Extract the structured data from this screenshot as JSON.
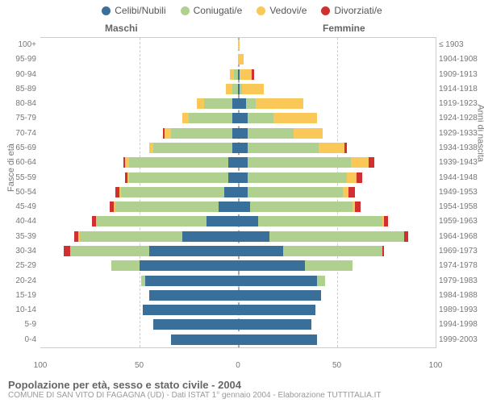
{
  "legend": [
    {
      "label": "Celibi/Nubili",
      "color": "#3a6f9a"
    },
    {
      "label": "Coniugati/e",
      "color": "#b0d090"
    },
    {
      "label": "Vedovi/e",
      "color": "#fac858"
    },
    {
      "label": "Divorziati/e",
      "color": "#d03030"
    }
  ],
  "headers": {
    "male": "Maschi",
    "female": "Femmine"
  },
  "axis": {
    "left_title": "Fasce di età",
    "right_title": "Anni di nascita",
    "x_ticks": [
      100,
      50,
      0,
      50,
      100
    ],
    "x_max": 100,
    "grid_positions": [
      -100,
      -50,
      0,
      50,
      100
    ]
  },
  "colors": {
    "celibi": "#3a6f9a",
    "coniugati": "#b0d090",
    "vedovi": "#fac858",
    "divorziati": "#d03030",
    "grid": "#cccccc",
    "center": "#aaaaaa",
    "text": "#777777"
  },
  "rows": [
    {
      "age": "100+",
      "birth": "≤ 1903",
      "m": {
        "c": 0,
        "co": 0,
        "v": 0,
        "d": 0
      },
      "f": {
        "c": 0,
        "co": 0,
        "v": 1,
        "d": 0
      }
    },
    {
      "age": "95-99",
      "birth": "1904-1908",
      "m": {
        "c": 0,
        "co": 0,
        "v": 0,
        "d": 0
      },
      "f": {
        "c": 0,
        "co": 0,
        "v": 3,
        "d": 0
      }
    },
    {
      "age": "90-94",
      "birth": "1909-1913",
      "m": {
        "c": 0,
        "co": 2,
        "v": 2,
        "d": 0
      },
      "f": {
        "c": 1,
        "co": 0,
        "v": 6,
        "d": 1
      }
    },
    {
      "age": "85-89",
      "birth": "1914-1918",
      "m": {
        "c": 0,
        "co": 3,
        "v": 3,
        "d": 0
      },
      "f": {
        "c": 1,
        "co": 1,
        "v": 11,
        "d": 0
      }
    },
    {
      "age": "80-84",
      "birth": "1919-1923",
      "m": {
        "c": 3,
        "co": 14,
        "v": 4,
        "d": 0
      },
      "f": {
        "c": 4,
        "co": 5,
        "v": 24,
        "d": 0
      }
    },
    {
      "age": "75-79",
      "birth": "1924-1928",
      "m": {
        "c": 3,
        "co": 22,
        "v": 3,
        "d": 0
      },
      "f": {
        "c": 5,
        "co": 13,
        "v": 22,
        "d": 0
      }
    },
    {
      "age": "70-74",
      "birth": "1929-1933",
      "m": {
        "c": 3,
        "co": 31,
        "v": 3,
        "d": 1
      },
      "f": {
        "c": 5,
        "co": 23,
        "v": 15,
        "d": 0
      }
    },
    {
      "age": "65-69",
      "birth": "1934-1938",
      "m": {
        "c": 3,
        "co": 40,
        "v": 2,
        "d": 0
      },
      "f": {
        "c": 5,
        "co": 36,
        "v": 13,
        "d": 1
      }
    },
    {
      "age": "60-64",
      "birth": "1939-1943",
      "m": {
        "c": 5,
        "co": 50,
        "v": 2,
        "d": 1
      },
      "f": {
        "c": 5,
        "co": 52,
        "v": 9,
        "d": 3
      }
    },
    {
      "age": "55-59",
      "birth": "1944-1948",
      "m": {
        "c": 5,
        "co": 50,
        "v": 1,
        "d": 1
      },
      "f": {
        "c": 5,
        "co": 50,
        "v": 5,
        "d": 3
      }
    },
    {
      "age": "50-54",
      "birth": "1949-1953",
      "m": {
        "c": 7,
        "co": 52,
        "v": 1,
        "d": 2
      },
      "f": {
        "c": 5,
        "co": 48,
        "v": 3,
        "d": 3
      }
    },
    {
      "age": "45-49",
      "birth": "1954-1958",
      "m": {
        "c": 10,
        "co": 52,
        "v": 1,
        "d": 2
      },
      "f": {
        "c": 6,
        "co": 52,
        "v": 1,
        "d": 3
      }
    },
    {
      "age": "40-44",
      "birth": "1959-1963",
      "m": {
        "c": 16,
        "co": 56,
        "v": 0,
        "d": 2
      },
      "f": {
        "c": 10,
        "co": 63,
        "v": 1,
        "d": 2
      }
    },
    {
      "age": "35-39",
      "birth": "1964-1968",
      "m": {
        "c": 28,
        "co": 52,
        "v": 1,
        "d": 2
      },
      "f": {
        "c": 16,
        "co": 68,
        "v": 0,
        "d": 2
      }
    },
    {
      "age": "30-34",
      "birth": "1969-1973",
      "m": {
        "c": 45,
        "co": 40,
        "v": 0,
        "d": 3
      },
      "f": {
        "c": 23,
        "co": 50,
        "v": 0,
        "d": 1
      }
    },
    {
      "age": "25-29",
      "birth": "1974-1978",
      "m": {
        "c": 50,
        "co": 14,
        "v": 0,
        "d": 0
      },
      "f": {
        "c": 34,
        "co": 24,
        "v": 0,
        "d": 0
      }
    },
    {
      "age": "20-24",
      "birth": "1979-1983",
      "m": {
        "c": 47,
        "co": 2,
        "v": 0,
        "d": 0
      },
      "f": {
        "c": 40,
        "co": 4,
        "v": 0,
        "d": 0
      }
    },
    {
      "age": "15-19",
      "birth": "1984-1988",
      "m": {
        "c": 45,
        "co": 0,
        "v": 0,
        "d": 0
      },
      "f": {
        "c": 42,
        "co": 0,
        "v": 0,
        "d": 0
      }
    },
    {
      "age": "10-14",
      "birth": "1989-1993",
      "m": {
        "c": 48,
        "co": 0,
        "v": 0,
        "d": 0
      },
      "f": {
        "c": 39,
        "co": 0,
        "v": 0,
        "d": 0
      }
    },
    {
      "age": "5-9",
      "birth": "1994-1998",
      "m": {
        "c": 43,
        "co": 0,
        "v": 0,
        "d": 0
      },
      "f": {
        "c": 37,
        "co": 0,
        "v": 0,
        "d": 0
      }
    },
    {
      "age": "0-4",
      "birth": "1999-2003",
      "m": {
        "c": 34,
        "co": 0,
        "v": 0,
        "d": 0
      },
      "f": {
        "c": 40,
        "co": 0,
        "v": 0,
        "d": 0
      }
    }
  ],
  "footer": {
    "title": "Popolazione per età, sesso e stato civile - 2004",
    "sub": "COMUNE DI SAN VITO DI FAGAGNA (UD) - Dati ISTAT 1° gennaio 2004 - Elaborazione TUTTITALIA.IT"
  }
}
